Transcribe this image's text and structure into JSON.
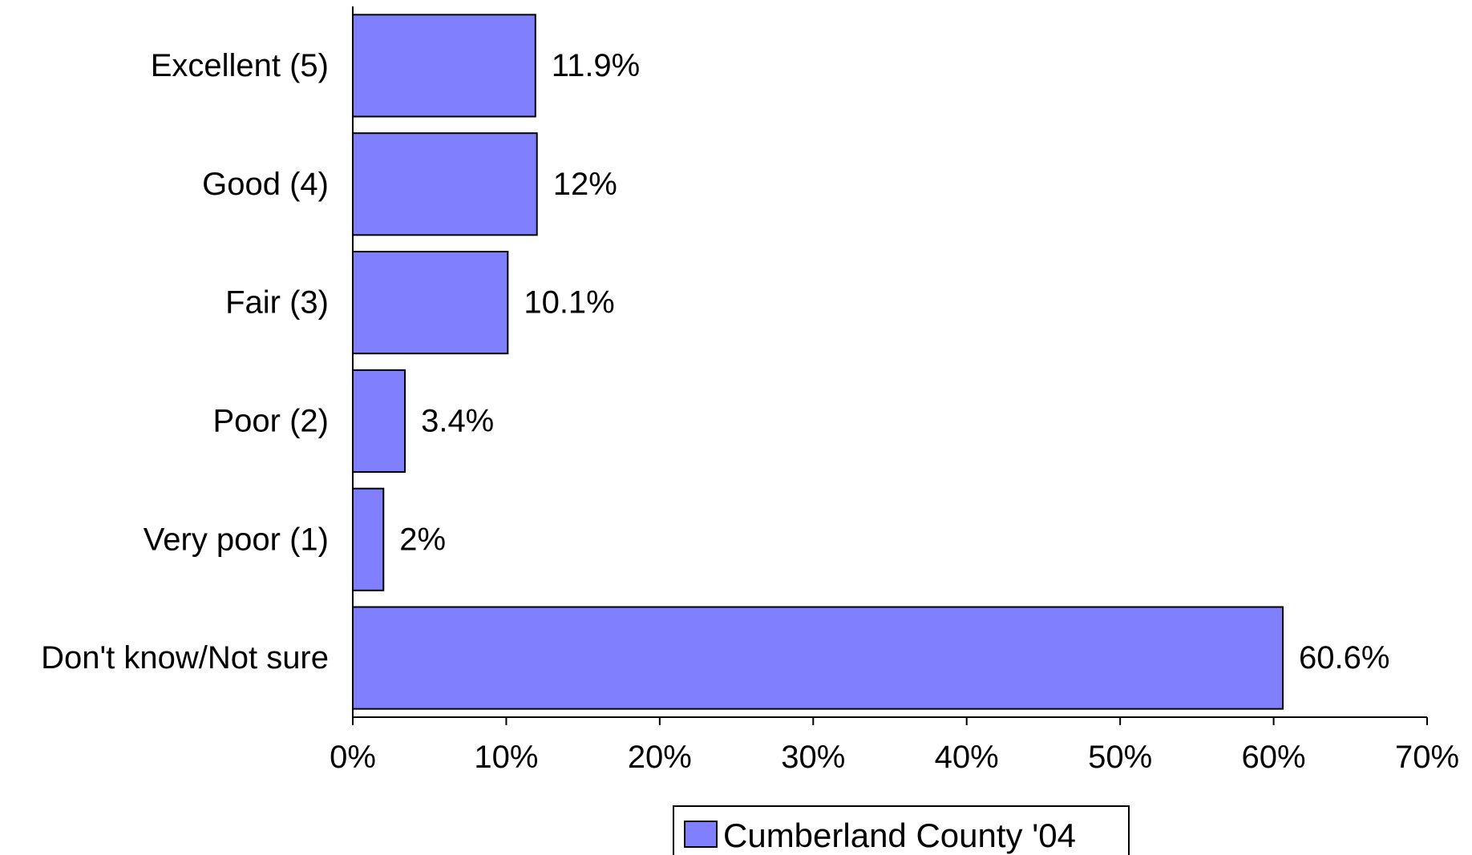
{
  "chart_data": {
    "type": "bar",
    "orientation": "horizontal",
    "categories": [
      "Excellent (5)",
      "Good (4)",
      "Fair (3)",
      "Poor (2)",
      "Very poor (1)",
      "Don't know/Not sure"
    ],
    "series": [
      {
        "name": "Cumberland County '04",
        "values": [
          11.9,
          12,
          10.1,
          3.4,
          2,
          60.6
        ],
        "value_labels": [
          "11.9%",
          "12%",
          "10.1%",
          "3.4%",
          "2%",
          "60.6%"
        ],
        "color": "#8080ff"
      }
    ],
    "xlim": [
      0,
      70
    ],
    "x_ticks": [
      0,
      10,
      20,
      30,
      40,
      50,
      60,
      70
    ],
    "x_tick_labels": [
      "0%",
      "10%",
      "20%",
      "30%",
      "40%",
      "50%",
      "60%",
      "70%"
    ],
    "grid": false,
    "legend_position": "bottom"
  }
}
